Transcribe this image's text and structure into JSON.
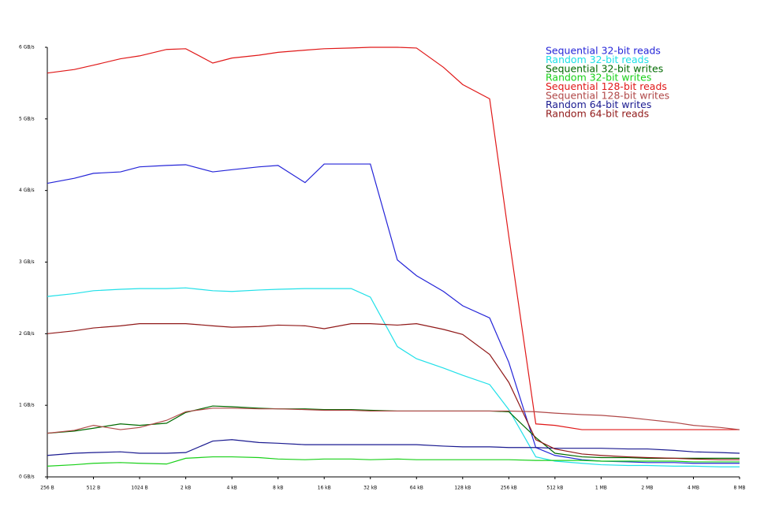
{
  "chart_data": {
    "type": "line",
    "xscale": "log",
    "legend": "upper right",
    "xlim": [
      256,
      8388608
    ],
    "ylim": [
      0,
      6
    ],
    "xticks": [
      {
        "value": 256,
        "label": "256 B"
      },
      {
        "value": 512,
        "label": "512 B"
      },
      {
        "value": 1024,
        "label": "1024 B"
      },
      {
        "value": 2048,
        "label": "2 kB"
      },
      {
        "value": 4096,
        "label": "4 kB"
      },
      {
        "value": 8192,
        "label": "8 kB"
      },
      {
        "value": 16384,
        "label": "16 kB"
      },
      {
        "value": 32768,
        "label": "32 kB"
      },
      {
        "value": 65536,
        "label": "64 kB"
      },
      {
        "value": 131072,
        "label": "128 kB"
      },
      {
        "value": 262144,
        "label": "256 kB"
      },
      {
        "value": 524288,
        "label": "512 kB"
      },
      {
        "value": 1048576,
        "label": "1 MB"
      },
      {
        "value": 2097152,
        "label": "2 MB"
      },
      {
        "value": 4194304,
        "label": "4 MB"
      },
      {
        "value": 8388608,
        "label": "8 MB"
      }
    ],
    "yticks": [
      {
        "value": 0,
        "label": "0 GB/s"
      },
      {
        "value": 1,
        "label": "1 GB/s"
      },
      {
        "value": 2,
        "label": "2 GB/s"
      },
      {
        "value": 3,
        "label": "3 GB/s"
      },
      {
        "value": 4,
        "label": "4 GB/s"
      },
      {
        "value": 5,
        "label": "5 GB/s"
      },
      {
        "value": 6,
        "label": "6 GB/s"
      }
    ],
    "x": [
      256,
      384,
      512,
      768,
      1024,
      1536,
      2048,
      3072,
      4096,
      6144,
      8192,
      12288,
      16384,
      24576,
      32768,
      49152,
      65536,
      98304,
      131072,
      196608,
      262144,
      393216,
      524288,
      786432,
      1048576,
      1572864,
      2097152,
      3145728,
      4194304,
      6291456,
      8388608
    ],
    "series": [
      {
        "name": "Sequential 32-bit reads",
        "color": "#2424d8",
        "values": [
          4.1,
          4.17,
          4.24,
          4.26,
          4.33,
          4.35,
          4.36,
          4.26,
          4.29,
          4.33,
          4.35,
          4.11,
          4.37,
          4.37,
          4.37,
          3.03,
          2.81,
          2.59,
          2.39,
          2.22,
          1.6,
          0.41,
          0.3,
          0.24,
          0.22,
          0.21,
          0.2,
          0.2,
          0.19,
          0.19,
          0.19
        ]
      },
      {
        "name": "Random 32-bit reads",
        "color": "#20e0e8",
        "values": [
          2.52,
          2.56,
          2.6,
          2.62,
          2.63,
          2.63,
          2.64,
          2.6,
          2.59,
          2.61,
          2.62,
          2.63,
          2.63,
          2.63,
          2.51,
          1.82,
          1.65,
          1.52,
          1.42,
          1.29,
          0.94,
          0.28,
          0.22,
          0.19,
          0.17,
          0.16,
          0.16,
          0.15,
          0.15,
          0.14,
          0.14
        ]
      },
      {
        "name": "Sequential 32-bit writes",
        "color": "#006a00",
        "values": [
          0.61,
          0.64,
          0.68,
          0.74,
          0.72,
          0.75,
          0.9,
          0.99,
          0.98,
          0.96,
          0.95,
          0.95,
          0.94,
          0.94,
          0.93,
          0.92,
          0.92,
          0.92,
          0.92,
          0.92,
          0.91,
          0.55,
          0.33,
          0.28,
          0.27,
          0.27,
          0.26,
          0.26,
          0.26,
          0.26,
          0.26
        ]
      },
      {
        "name": "Random 32-bit writes",
        "color": "#18d018",
        "values": [
          0.15,
          0.17,
          0.19,
          0.2,
          0.19,
          0.18,
          0.26,
          0.28,
          0.28,
          0.27,
          0.25,
          0.24,
          0.25,
          0.25,
          0.24,
          0.25,
          0.24,
          0.24,
          0.24,
          0.24,
          0.24,
          0.23,
          0.23,
          0.23,
          0.22,
          0.22,
          0.22,
          0.22,
          0.21,
          0.21,
          0.21
        ]
      },
      {
        "name": "Sequential 128-bit reads",
        "color": "#e01818",
        "values": [
          5.64,
          5.69,
          5.75,
          5.84,
          5.88,
          5.97,
          5.98,
          5.78,
          5.85,
          5.89,
          5.93,
          5.96,
          5.98,
          5.99,
          6.0,
          6.0,
          5.99,
          5.72,
          5.48,
          5.28,
          3.36,
          0.74,
          0.72,
          0.66,
          0.66,
          0.66,
          0.66,
          0.66,
          0.66,
          0.66,
          0.66
        ]
      },
      {
        "name": "Sequential 128-bit writes",
        "color": "#b04848",
        "values": [
          0.61,
          0.65,
          0.72,
          0.66,
          0.69,
          0.79,
          0.91,
          0.96,
          0.96,
          0.95,
          0.95,
          0.94,
          0.93,
          0.93,
          0.92,
          0.92,
          0.92,
          0.92,
          0.92,
          0.92,
          0.92,
          0.91,
          0.89,
          0.87,
          0.86,
          0.83,
          0.8,
          0.76,
          0.72,
          0.69,
          0.66
        ]
      },
      {
        "name": "Random 64-bit writes",
        "color": "#1a1a90",
        "values": [
          0.3,
          0.33,
          0.34,
          0.35,
          0.33,
          0.33,
          0.34,
          0.5,
          0.52,
          0.48,
          0.47,
          0.45,
          0.45,
          0.45,
          0.45,
          0.45,
          0.45,
          0.43,
          0.42,
          0.42,
          0.41,
          0.41,
          0.4,
          0.4,
          0.4,
          0.39,
          0.39,
          0.37,
          0.35,
          0.34,
          0.33
        ]
      },
      {
        "name": "Random 64-bit reads",
        "color": "#901818",
        "values": [
          2.0,
          2.04,
          2.08,
          2.11,
          2.14,
          2.14,
          2.14,
          2.11,
          2.09,
          2.1,
          2.12,
          2.11,
          2.07,
          2.14,
          2.14,
          2.12,
          2.14,
          2.06,
          1.99,
          1.71,
          1.32,
          0.52,
          0.39,
          0.32,
          0.3,
          0.28,
          0.27,
          0.26,
          0.25,
          0.24,
          0.24
        ]
      }
    ]
  }
}
